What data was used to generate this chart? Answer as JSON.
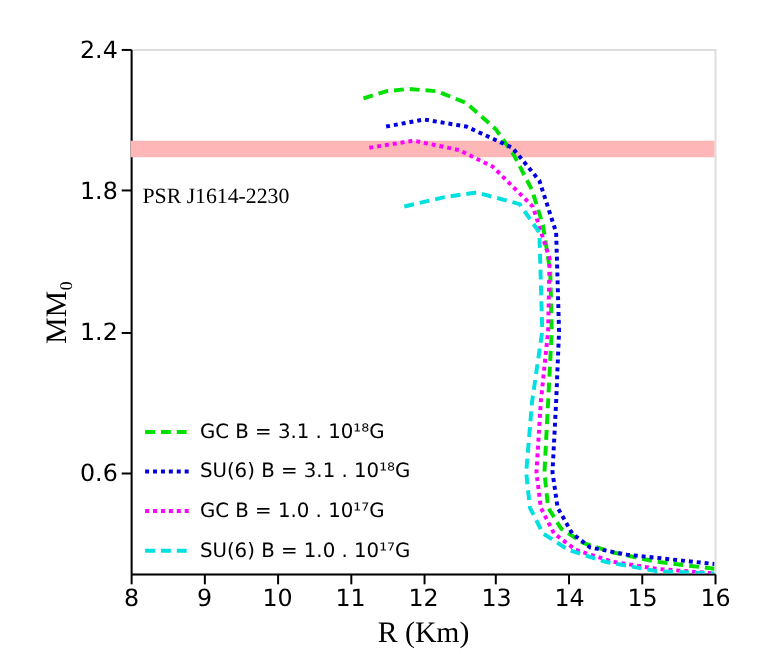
{
  "chart_data": {
    "type": "line",
    "xlabel": "R (Km)",
    "ylabel": "MM₀",
    "xlim": [
      8,
      16
    ],
    "xticks": [
      8,
      9,
      10,
      11,
      12,
      13,
      14,
      15,
      16
    ],
    "ylim": [
      0.17,
      2.4
    ],
    "yticks": [
      0.6,
      1.2,
      1.8,
      2.4
    ],
    "grid": false,
    "legend": "bottom left",
    "marker": "none",
    "bands": [
      {
        "axis": "y",
        "from": 1.94,
        "to": 2.01,
        "label": "PSR J1614-2230",
        "color": "#ffb6b6"
      }
    ],
    "series": [
      {
        "name": "GC B = 3.1 . 10¹⁸G",
        "color": "#00e000",
        "line_style": "dashed",
        "x": [
          11.19,
          11.5,
          11.8,
          12.2,
          12.6,
          13.0,
          13.25,
          13.5,
          13.65,
          13.75,
          13.77,
          13.72,
          13.67,
          13.72,
          13.9,
          14.2,
          14.6,
          15.2,
          16
        ],
        "values": [
          2.19,
          2.22,
          2.23,
          2.22,
          2.17,
          2.06,
          1.95,
          1.8,
          1.65,
          1.45,
          1.2,
          0.9,
          0.6,
          0.45,
          0.36,
          0.3,
          0.26,
          0.22,
          0.19
        ]
      },
      {
        "name": "SU(6) B = 3.1 . 10¹⁸G",
        "color": "#0000e0",
        "line_style": "dotted",
        "x": [
          11.5,
          12.02,
          12.6,
          13.23,
          13.6,
          13.83,
          13.87,
          13.83,
          13.78,
          13.85,
          14.05,
          14.3,
          14.8,
          15.4,
          16
        ],
        "values": [
          2.07,
          2.1,
          2.07,
          1.98,
          1.84,
          1.62,
          1.2,
          0.9,
          0.6,
          0.45,
          0.34,
          0.28,
          0.25,
          0.23,
          0.21
        ]
      },
      {
        "name": "GC B = 1.0 . 10¹⁷G",
        "color": "#ff00ff",
        "line_style": "dotted",
        "x": [
          11.27,
          11.88,
          12.5,
          12.96,
          13.51,
          13.74,
          13.72,
          13.62,
          13.56,
          13.62,
          13.8,
          14.1,
          14.6,
          15.2,
          16
        ],
        "values": [
          1.98,
          2.01,
          1.97,
          1.9,
          1.73,
          1.51,
          1.2,
          0.9,
          0.6,
          0.45,
          0.34,
          0.27,
          0.22,
          0.19,
          0.17
        ]
      },
      {
        "name": "SU(6) B = 1.0 . 10¹⁷G",
        "color": "#00e0e0",
        "line_style": "dashed",
        "x": [
          11.75,
          12.3,
          12.74,
          13.33,
          13.6,
          13.64,
          13.5,
          13.42,
          13.47,
          13.65,
          14.0,
          14.5,
          15.2,
          16
        ],
        "values": [
          1.73,
          1.77,
          1.79,
          1.74,
          1.62,
          1.2,
          0.9,
          0.6,
          0.45,
          0.34,
          0.27,
          0.22,
          0.18,
          0.17
        ]
      }
    ]
  }
}
